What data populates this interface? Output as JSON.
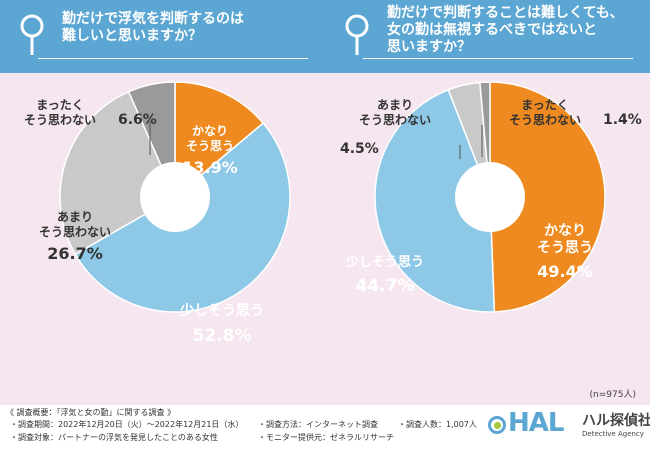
{
  "questions": [
    {
      "lines": [
        "勤だけで浮気を判断するのは",
        "難しいと思いますか？"
      ]
    },
    {
      "lines": [
        "勤だけで判断することは難しくても、",
        "女の勤は無視するべきではないと",
        "思いますか？"
      ]
    }
  ],
  "chart_data": [
    {
      "type": "pie",
      "variant": "donut",
      "slices": [
        {
          "label_lines": [
            "かなり",
            "そう思う"
          ],
          "pct_label": "13.9%",
          "value": 13.9,
          "color": "#ee8a1f"
        },
        {
          "label_lines": [
            "少しそう思う"
          ],
          "pct_label": "52.8%",
          "value": 52.8,
          "color": "#8dc8e6"
        },
        {
          "label_lines": [
            "あまり",
            "そう思わない"
          ],
          "pct_label": "26.7%",
          "value": 26.7,
          "color": "#c9c9c9"
        },
        {
          "label_lines": [
            "まったく",
            "そう思わない"
          ],
          "pct_label": "6.6%",
          "value": 6.6,
          "color": "#9a9a9a"
        }
      ]
    },
    {
      "type": "pie",
      "variant": "donut",
      "slices": [
        {
          "label_lines": [
            "かなり",
            "そう思う"
          ],
          "pct_label": "49.4%",
          "value": 49.4,
          "color": "#ee8a1f"
        },
        {
          "label_lines": [
            "少しそう思う"
          ],
          "pct_label": "44.7%",
          "value": 44.7,
          "color": "#8dc8e6"
        },
        {
          "label_lines": [
            "あまり",
            "そう思わない"
          ],
          "pct_label": "4.5%",
          "value": 4.5,
          "color": "#c9c9c9"
        },
        {
          "label_lines": [
            "まったく",
            "そう思わない"
          ],
          "pct_label": "1.4%",
          "value": 1.4,
          "color": "#9a9a9a"
        }
      ]
    }
  ],
  "n_note": "(n=975人)",
  "survey": {
    "title": "《 調査概要：「浮気と女の勤」に関する調査 》",
    "period": "・調査期間：2022年12月20日（火）～2022年12月21日（水）",
    "target": "・調査対象：パートナーの浮気を発見したことのある女性",
    "method": "・調査方法：インターネット調査",
    "provider": "・モニター提供元：ゼネラルリサーチ",
    "count": "・調査人数：1,007人"
  },
  "logo": {
    "hal": "HAL",
    "name": "ハル探偵社",
    "sub": "Detective Agency"
  }
}
